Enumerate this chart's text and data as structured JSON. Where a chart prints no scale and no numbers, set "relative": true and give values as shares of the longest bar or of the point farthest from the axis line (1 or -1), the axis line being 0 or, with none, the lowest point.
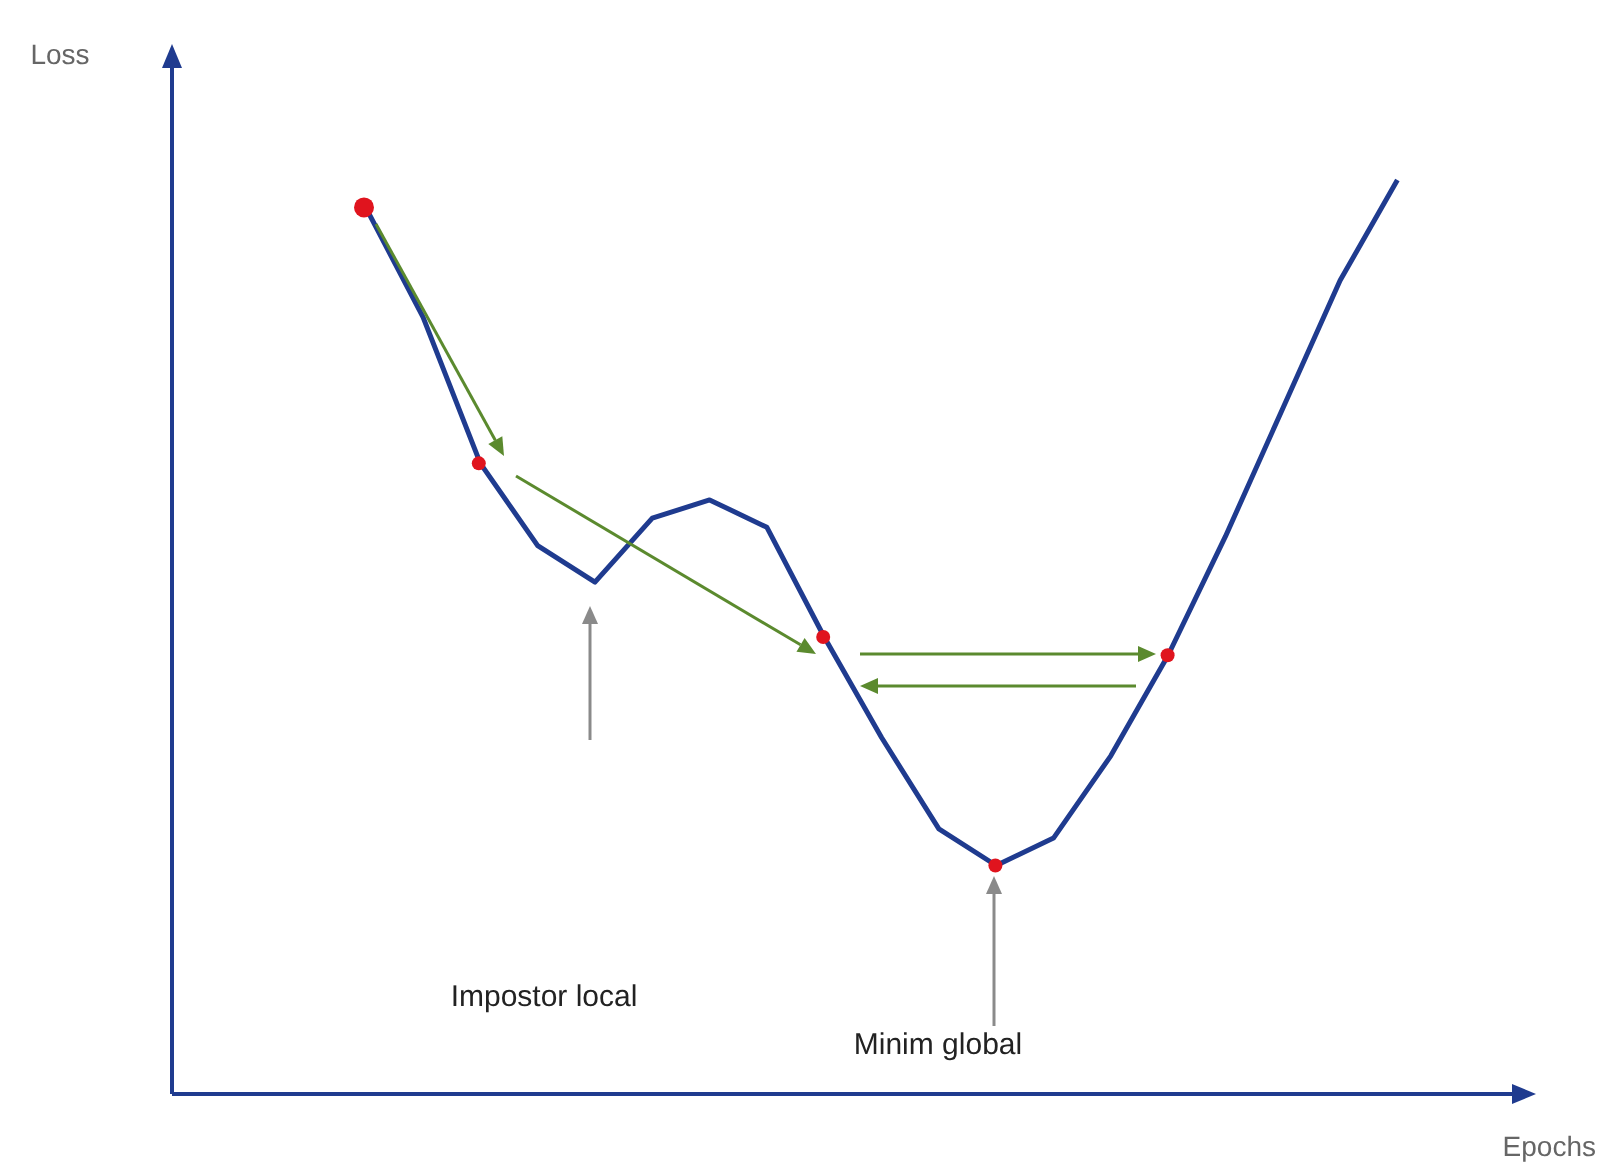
{
  "chart_data": {
    "type": "line",
    "xlabel": "Epochs",
    "relative": true,
    "categories": [
      null,
      null,
      null,
      null,
      null,
      null,
      null,
      null,
      null,
      null,
      null,
      null,
      null,
      null,
      null,
      null,
      null,
      null,
      null
    ],
    "series": [
      {
        "color": "#1f3b8f",
        "values": [
          0.97,
          0.85,
          0.69,
          0.6,
          0.56,
          0.63,
          0.65,
          0.62,
          0.5,
          0.39,
          0.29,
          0.25,
          0.28,
          0.37,
          0.48,
          0.61,
          0.75,
          0.89,
          1.0
        ]
      }
    ],
    "annotations": [
      "Loss",
      "Impostor local",
      "Minim global"
    ],
    "grid": false
  }
}
